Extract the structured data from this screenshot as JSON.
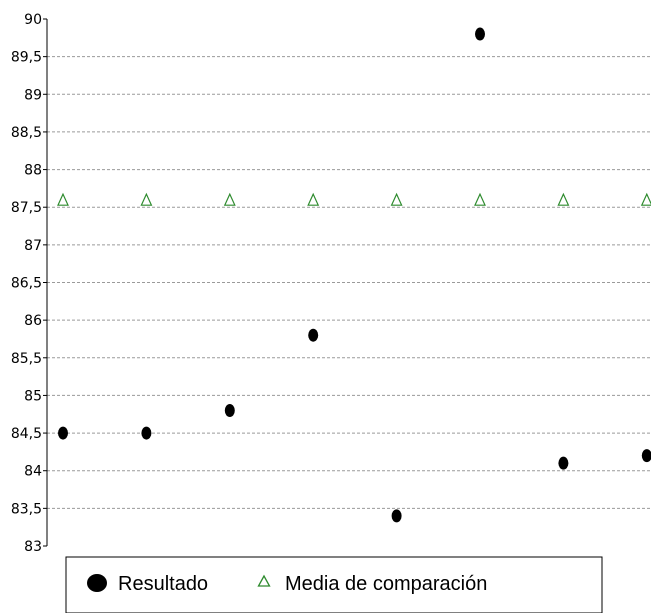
{
  "chart_data": {
    "type": "scatter",
    "title": "",
    "xlabel": "",
    "ylabel": "",
    "ylim": [
      83,
      90
    ],
    "y_ticks": [
      "83",
      "83,5",
      "84",
      "84,5",
      "85",
      "85,5",
      "86",
      "86,5",
      "87",
      "87,5",
      "88",
      "88,5",
      "89",
      "89,5",
      "90"
    ],
    "y_tick_values": [
      83,
      83.5,
      84,
      84.5,
      85,
      85.5,
      86,
      86.5,
      87,
      87.5,
      88,
      88.5,
      89,
      89.5,
      90
    ],
    "grid": true,
    "legend_position": "bottom",
    "x": [
      1,
      2,
      3,
      4,
      5,
      6,
      7,
      8
    ],
    "series": [
      {
        "name": "Resultado",
        "marker": "filled-circle",
        "color": "#000000",
        "values": [
          84.5,
          84.5,
          84.8,
          85.8,
          83.4,
          89.8,
          84.1,
          84.2
        ]
      },
      {
        "name": "Media de comparación",
        "marker": "open-triangle",
        "color": "#2e8b2e",
        "values": [
          87.6,
          87.6,
          87.6,
          87.6,
          87.6,
          87.6,
          87.6,
          87.6
        ]
      }
    ]
  }
}
